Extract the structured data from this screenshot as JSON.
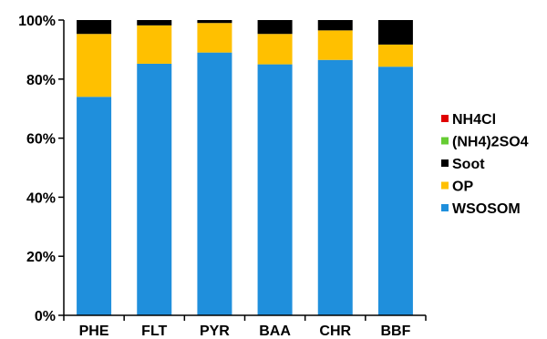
{
  "chart_data": {
    "type": "bar",
    "stacked": true,
    "percent": true,
    "title": "",
    "xlabel": "",
    "ylabel": "",
    "ylim": [
      0,
      100
    ],
    "y_ticks": [
      "0%",
      "20%",
      "40%",
      "60%",
      "80%",
      "100%"
    ],
    "categories": [
      "PHE",
      "FLT",
      "PYR",
      "BAA",
      "CHR",
      "BBF"
    ],
    "series": [
      {
        "name": "WSOSOM",
        "color": "#1f8fdc",
        "values": [
          74,
          85.2,
          89,
          85,
          86.5,
          84.2
        ]
      },
      {
        "name": "OP",
        "color": "#ffc000",
        "values": [
          21.3,
          13,
          10,
          10.3,
          10,
          7.5
        ]
      },
      {
        "name": "Soot",
        "color": "#000000",
        "values": [
          4.7,
          1.8,
          1,
          4.7,
          3.5,
          8.3
        ]
      },
      {
        "name": "(NH4)2SO4",
        "color": "#66cc33",
        "values": [
          0,
          0,
          0,
          0,
          0,
          0
        ]
      },
      {
        "name": "NH4Cl",
        "color": "#e00000",
        "values": [
          0,
          0,
          0,
          0,
          0,
          0
        ]
      }
    ],
    "legend": {
      "placement": "right",
      "order": [
        "NH4Cl",
        "(NH4)2SO4",
        "Soot",
        "OP",
        "WSOSOM"
      ]
    },
    "grid": false
  }
}
